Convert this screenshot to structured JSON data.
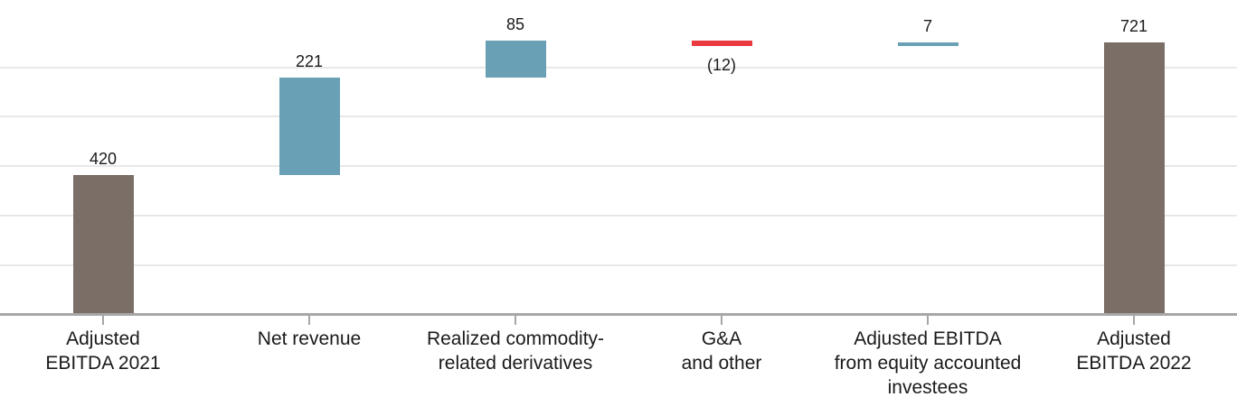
{
  "chart_data": {
    "type": "bar",
    "subtype": "waterfall",
    "categories": [
      "Adjusted EBITDA 2021",
      "Net revenue",
      "Realized commodity-related derivatives",
      "G&A and other",
      "Adjusted EBITDA from equity accounted investees",
      "Adjusted EBITDA 2022"
    ],
    "bars": [
      {
        "label": "Adjusted EBITDA 2021",
        "label_lines": [
          "Adjusted",
          "EBITDA 2021"
        ],
        "value": 420,
        "display": "420",
        "kind": "total",
        "start": 0,
        "end": 420,
        "value_label_position": "above"
      },
      {
        "label": "Net revenue",
        "label_lines": [
          "Net revenue"
        ],
        "value": 221,
        "display": "221",
        "kind": "increase",
        "start": 420,
        "end": 641,
        "value_label_position": "above"
      },
      {
        "label": "Realized commodity-related derivatives",
        "label_lines": [
          "Realized commodity-",
          "related derivatives"
        ],
        "value": 85,
        "display": "85",
        "kind": "increase",
        "start": 641,
        "end": 726,
        "value_label_position": "above"
      },
      {
        "label": "G&A and other",
        "label_lines": [
          "G&A",
          "and other"
        ],
        "value": -12,
        "display": "(12)",
        "kind": "decrease",
        "start": 726,
        "end": 714,
        "value_label_position": "below"
      },
      {
        "label": "Adjusted EBITDA from equity accounted investees",
        "label_lines": [
          "Adjusted EBITDA",
          "from equity accounted",
          "investees"
        ],
        "value": 7,
        "display": "7",
        "kind": "increase",
        "start": 714,
        "end": 721,
        "value_label_position": "above"
      },
      {
        "label": "Adjusted EBITDA 2022",
        "label_lines": [
          "Adjusted",
          "EBITDA 2022"
        ],
        "value": 721,
        "display": "721",
        "kind": "total",
        "start": 0,
        "end": 721,
        "value_label_position": "above"
      }
    ],
    "colors": {
      "total": "#7a6e67",
      "increase": "#6aa0b5",
      "decrease": "#e93a40",
      "gridline": "#e8e8e8",
      "axis": "#a6a6a6",
      "text": "#1a1a1a"
    },
    "ylabel": "",
    "xlabel": "",
    "title": "",
    "ylim": [
      100,
      820
    ],
    "grid": true,
    "legend": false,
    "value_axis_labels_visible": false
  }
}
